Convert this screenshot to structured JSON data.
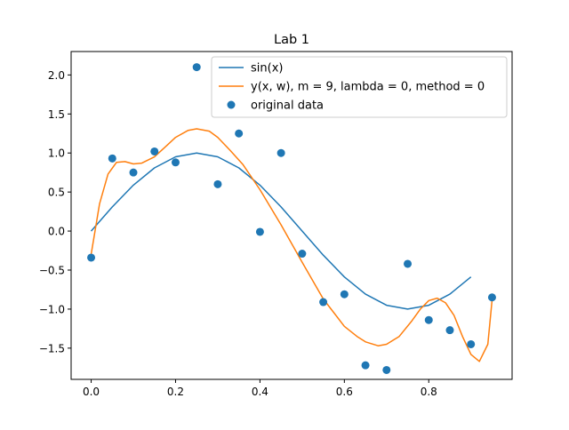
{
  "chart_data": {
    "type": "line",
    "title": "Lab 1",
    "xlabel": "",
    "ylabel": "",
    "xlim": [
      -0.0475,
      0.9975
    ],
    "ylim": [
      -1.9,
      2.3
    ],
    "xticks": [
      0.0,
      0.2,
      0.4,
      0.6,
      0.8
    ],
    "yticks": [
      -1.5,
      -1.0,
      -0.5,
      0.0,
      0.5,
      1.0,
      1.5,
      2.0
    ],
    "xtick_labels": [
      "0.0",
      "0.2",
      "0.4",
      "0.6",
      "0.8"
    ],
    "ytick_labels": [
      "−1.5",
      "−1.0",
      "−0.5",
      "0.0",
      "0.5",
      "1.0",
      "1.5",
      "2.0"
    ],
    "grid": false,
    "legend_position": "upper-right",
    "series": [
      {
        "name": "sin(x)",
        "kind": "line",
        "color": "#1f77b4",
        "x": [
          0.0,
          0.05,
          0.1,
          0.15,
          0.2,
          0.25,
          0.3,
          0.35,
          0.4,
          0.45,
          0.5,
          0.55,
          0.6,
          0.65,
          0.7,
          0.75,
          0.8,
          0.85,
          0.9
        ],
        "y": [
          0.0,
          0.309,
          0.588,
          0.809,
          0.951,
          1.0,
          0.951,
          0.809,
          0.588,
          0.309,
          0.0,
          -0.309,
          -0.588,
          -0.809,
          -0.951,
          -1.0,
          -0.951,
          -0.809,
          -0.588
        ]
      },
      {
        "name": "y(x, w), m = 9, lambda = 0, method = 0",
        "kind": "line",
        "color": "#ff7f0e",
        "x": [
          0.0,
          0.02,
          0.04,
          0.06,
          0.08,
          0.1,
          0.12,
          0.15,
          0.18,
          0.2,
          0.23,
          0.25,
          0.28,
          0.3,
          0.33,
          0.36,
          0.4,
          0.45,
          0.5,
          0.55,
          0.6,
          0.63,
          0.65,
          0.68,
          0.7,
          0.73,
          0.76,
          0.78,
          0.8,
          0.82,
          0.84,
          0.86,
          0.88,
          0.9,
          0.92,
          0.94,
          0.95
        ],
        "y": [
          -0.3,
          0.35,
          0.73,
          0.88,
          0.89,
          0.86,
          0.87,
          0.95,
          1.1,
          1.2,
          1.29,
          1.31,
          1.28,
          1.2,
          1.03,
          0.85,
          0.53,
          0.08,
          -0.4,
          -0.87,
          -1.22,
          -1.35,
          -1.42,
          -1.47,
          -1.45,
          -1.35,
          -1.15,
          -1.0,
          -0.89,
          -0.86,
          -0.92,
          -1.08,
          -1.35,
          -1.58,
          -1.67,
          -1.45,
          -0.88
        ]
      },
      {
        "name": "original data",
        "kind": "scatter",
        "color": "#1f77b4",
        "x": [
          0.0,
          0.05,
          0.1,
          0.15,
          0.2,
          0.25,
          0.3,
          0.35,
          0.4,
          0.45,
          0.5,
          0.55,
          0.6,
          0.65,
          0.7,
          0.75,
          0.8,
          0.85,
          0.9,
          0.95
        ],
        "y": [
          -0.34,
          0.93,
          0.75,
          1.02,
          0.88,
          2.1,
          0.6,
          1.25,
          -0.01,
          1.0,
          -0.29,
          -0.91,
          -0.81,
          -1.72,
          -1.78,
          -0.42,
          -1.14,
          -1.27,
          -1.45,
          -0.85
        ]
      }
    ]
  }
}
